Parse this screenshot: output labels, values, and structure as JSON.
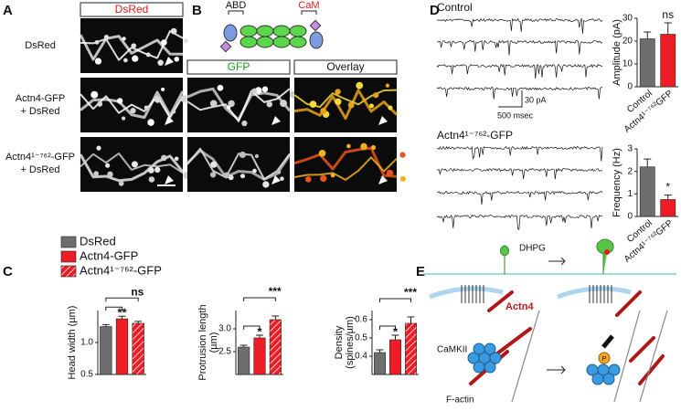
{
  "panels": {
    "A": {
      "label": "A",
      "header": "DsRed",
      "rows": [
        [
          "DsRed"
        ],
        [
          "Actn4-GFP",
          "+ DsRed"
        ],
        [
          "Actn4¹⁻⁷⁶²-GFP",
          "+ DsRed"
        ]
      ]
    },
    "B": {
      "label": "B",
      "domains": [
        "ABD",
        "CaM"
      ],
      "headers": [
        "GFP",
        "Overlay"
      ]
    },
    "C": {
      "label": "C",
      "legend": [
        {
          "name": "DsRed",
          "color": "#6e6e6e"
        },
        {
          "name": "Actn4-GFP",
          "color": "#ee1c24"
        },
        {
          "name": "Actn4¹⁻⁷⁶²-GFP",
          "color": "#ee1c24",
          "pattern": "hatch"
        }
      ],
      "charts": [
        {
          "type": "bar",
          "ylabel": [
            "Head width (µm)"
          ],
          "ylim": [
            0.5,
            1.5
          ],
          "yticks": [
            0.5,
            {
              "value": 1,
              "label": "1.0"
            }
          ],
          "values": [
            1.25,
            1.37,
            1.3
          ],
          "errors": [
            0.03,
            0.04,
            0.03
          ],
          "significance": [
            "**",
            "ns"
          ]
        },
        {
          "type": "bar",
          "ylabel": [
            "Protrusion length",
            "(µm)"
          ],
          "ylim": [
            2.0,
            3.4
          ],
          "yticks": [
            2.5,
            {
              "value": 3,
              "label": "3.0"
            }
          ],
          "values": [
            2.6,
            2.8,
            3.2
          ],
          "errors": [
            0.04,
            0.06,
            0.08
          ],
          "significance": [
            "*",
            "***"
          ]
        },
        {
          "type": "bar",
          "ylabel": [
            "Density",
            "(spines/µm)"
          ],
          "ylim": [
            0.3,
            0.65
          ],
          "yticks": [
            0.4,
            0.5,
            0.6
          ],
          "values": [
            0.42,
            0.49,
            0.58
          ],
          "errors": [
            0.015,
            0.025,
            0.035
          ],
          "significance": [
            "*",
            "***"
          ]
        }
      ]
    },
    "D": {
      "label": "D",
      "traces": [
        "Control",
        "Actn4¹⁻⁷⁶²-GFP"
      ],
      "scale": [
        "30 pA",
        "500 msec"
      ],
      "charts": [
        {
          "type": "bar",
          "ylabel": [
            "Amplitude (pA)"
          ],
          "ylim": [
            0,
            30
          ],
          "yticks": [
            0,
            10,
            20,
            30
          ],
          "categories": [
            "Control",
            "Actn4¹⁻⁷⁶²GFP"
          ],
          "colors": [
            "#6e6e6e",
            "#ee1c24"
          ],
          "values": [
            21,
            23
          ],
          "errors": [
            3,
            5
          ],
          "significance": [
            "ns"
          ]
        },
        {
          "type": "bar",
          "ylabel": [
            "Frequency (Hz)"
          ],
          "ylim": [
            0,
            3
          ],
          "yticks": [
            0,
            1,
            2,
            3
          ],
          "categories": [
            "Control",
            "Actn4¹⁻⁷⁶²GFP"
          ],
          "colors": [
            "#6e6e6e",
            "#ee1c24"
          ],
          "values": [
            2.2,
            0.75
          ],
          "errors": [
            0.35,
            0.2
          ],
          "significance": [
            "*"
          ]
        }
      ]
    },
    "E": {
      "label": "E",
      "labels": [
        "DHPG",
        "Actn4",
        "CaMKII",
        "F-actin",
        "P"
      ]
    }
  }
}
